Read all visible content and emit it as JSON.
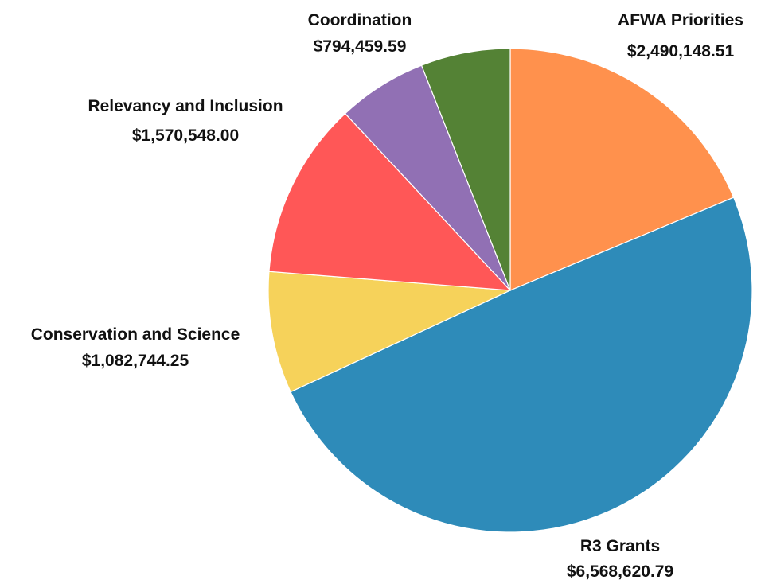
{
  "chart_data": {
    "type": "pie",
    "start_angle_deg": 0,
    "direction": "clockwise",
    "slices": [
      {
        "label": "AFWA Priorities",
        "value_text": "$2,490,148.51",
        "value": 2490148.51,
        "color": "#FF914D"
      },
      {
        "label": "R3 Grants",
        "value_text": "$6,568,620.79",
        "value": 6568620.79,
        "color": "#2E8BB9"
      },
      {
        "label": "Conservation and Science",
        "value_text": "$1,082,744.25",
        "value": 1082744.25,
        "color": "#F6D25A"
      },
      {
        "label": "Relevancy and Inclusion",
        "value_text": "$1,570,548.00",
        "value": 1570548.0,
        "color": "#FF5757"
      },
      {
        "label": "",
        "value_text": "",
        "value": 0,
        "color": "#9170B4"
      },
      {
        "label": "Coordination",
        "value_text": "$794,459.59",
        "value": 794459.59,
        "color": "#548235"
      }
    ],
    "legend": "none"
  }
}
